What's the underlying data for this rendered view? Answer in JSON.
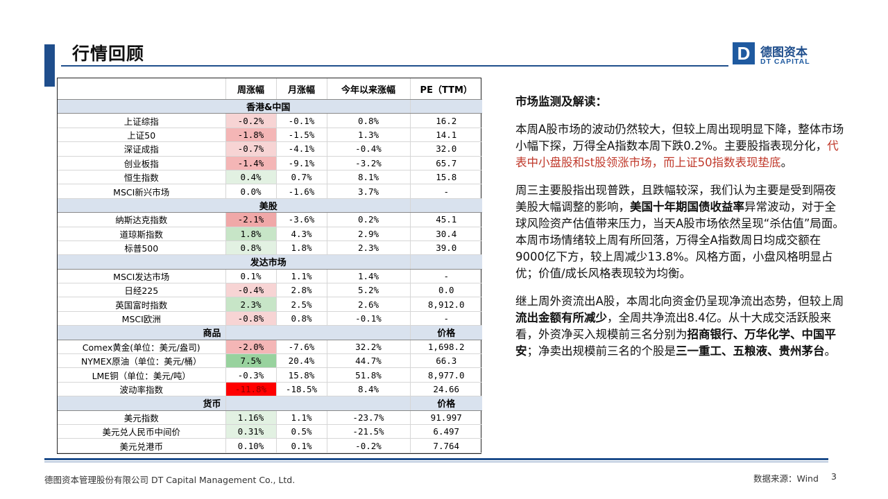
{
  "header": {
    "title": "行情回顾"
  },
  "logo": {
    "mark": "D",
    "cn": "德图资本",
    "en": "DT CAPITAL"
  },
  "table": {
    "headers": [
      "",
      "周涨幅",
      "月涨幅",
      "今年以来涨幅",
      "PE（TTM）"
    ],
    "sections": [
      {
        "label": "香港&中国",
        "price_label": "",
        "rows": [
          [
            "上证综指",
            "-0.2%",
            "-0.1%",
            "0.8%",
            "16.2"
          ],
          [
            "上证50",
            "-1.8%",
            "-1.5%",
            "1.3%",
            "14.1"
          ],
          [
            "深证成指",
            "-0.7%",
            "-4.1%",
            "-0.4%",
            "32.0"
          ],
          [
            "创业板指",
            "-1.4%",
            "-9.1%",
            "-3.2%",
            "65.7"
          ],
          [
            "恒生指数",
            "0.4%",
            "0.7%",
            "8.1%",
            "15.8"
          ],
          [
            "MSCI新兴市场",
            "0.0%",
            "-1.6%",
            "3.7%",
            "-"
          ]
        ]
      },
      {
        "label": "美股",
        "price_label": "",
        "rows": [
          [
            "纳斯达克指数",
            "-2.1%",
            "-3.6%",
            "0.2%",
            "45.1"
          ],
          [
            "道琼斯指数",
            "1.8%",
            "4.3%",
            "2.9%",
            "30.4"
          ],
          [
            "标普500",
            "0.8%",
            "1.8%",
            "2.3%",
            "39.0"
          ]
        ]
      },
      {
        "label": "发达市场",
        "price_label": "",
        "rows": [
          [
            "MSCI发达市场",
            "0.1%",
            "1.1%",
            "1.4%",
            "-"
          ],
          [
            "日经225",
            "-0.4%",
            "2.8%",
            "5.2%",
            "0.0"
          ],
          [
            "英国富时指数",
            "2.3%",
            "2.5%",
            "2.6%",
            "8,912.0"
          ],
          [
            "MSCI欧洲",
            "-0.8%",
            "0.8%",
            "-0.1%",
            "-"
          ]
        ]
      },
      {
        "label": "商品",
        "price_label": "价格",
        "rows": [
          [
            "Comex黄金(单位：美元/盎司)",
            "-2.0%",
            "-7.6%",
            "32.2%",
            "1,698.2"
          ],
          [
            "NYMEX原油（单位：美元/桶）",
            "7.5%",
            "20.4%",
            "44.7%",
            "66.3"
          ],
          [
            "LME铜（单位：美元/吨）",
            "-0.3%",
            "15.8%",
            "51.8%",
            "8,977.0"
          ],
          [
            "波动率指数",
            "-11.8%",
            "-18.5%",
            "8.4%",
            "24.66"
          ]
        ]
      },
      {
        "label": "货币",
        "price_label": "价格",
        "rows": [
          [
            "美元指数",
            "1.16%",
            "1.1%",
            "-23.7%",
            "91.997"
          ],
          [
            "美元兑人民币中间价",
            "0.31%",
            "0.5%",
            "-21.5%",
            "6.497"
          ],
          [
            "美元兑港币",
            "0.10%",
            "0.1%",
            "-0.2%",
            "7.764"
          ]
        ]
      }
    ],
    "colors": {
      "neg_light": "#f7d4d4",
      "neg_mid": "#f4b6b6",
      "pos_light": "#e2f1e2",
      "pos_mid": "#c7e5c7",
      "pos_strong": "#98d29e",
      "neg_extreme": "#ff0000",
      "section_bg": "#d9e2ee"
    }
  },
  "commentary": {
    "heading": "市场监测及解读：",
    "p1_a": "本周A股市场的波动仍然较大，但较上周出现明显下降，整体市场小幅下探，万得全A指数本周下跌0.2%。主要股指表现分化，",
    "p1_red": "代表中小盘股和st股领涨市场，而上证50指数表现垫底",
    "p1_end": "。",
    "p2_a": "周三主要股指出现普跌，且跌幅较深，我们认为主要是受到隔夜美股大幅调整的影响，",
    "p2_b": "美国十年期国债收益率",
    "p2_c": "异常波动，对于全球风险资产估值带来压力，当天A股市场依然呈现“杀估值”局面。本周市场情绪较上周有所回落，万得全A指数周日均成交额在9000亿下方，较上周减少13.8%。风格方面，小盘风格明显占优；价值/成长风格表现较为均衡。",
    "p3_a": "继上周外资流出A股，本周北向资金仍呈现净流出态势，但较上周",
    "p3_b": "流出金额有所减少",
    "p3_c": "，全周共净流出8.4亿。从十大成交活跃股来看，外资净买入规模前三名分别为",
    "p3_d": "招商银行、万华化学、中国平安",
    "p3_e": "；净卖出规模前三名的个股是",
    "p3_f": "三一重工、五粮液、贵州茅台",
    "p3_g": "。"
  },
  "footer": {
    "company": "德图资本管理股份有限公司  DT Capital Management Co., Ltd.",
    "source": "数据来源：Wind",
    "page": "3"
  }
}
